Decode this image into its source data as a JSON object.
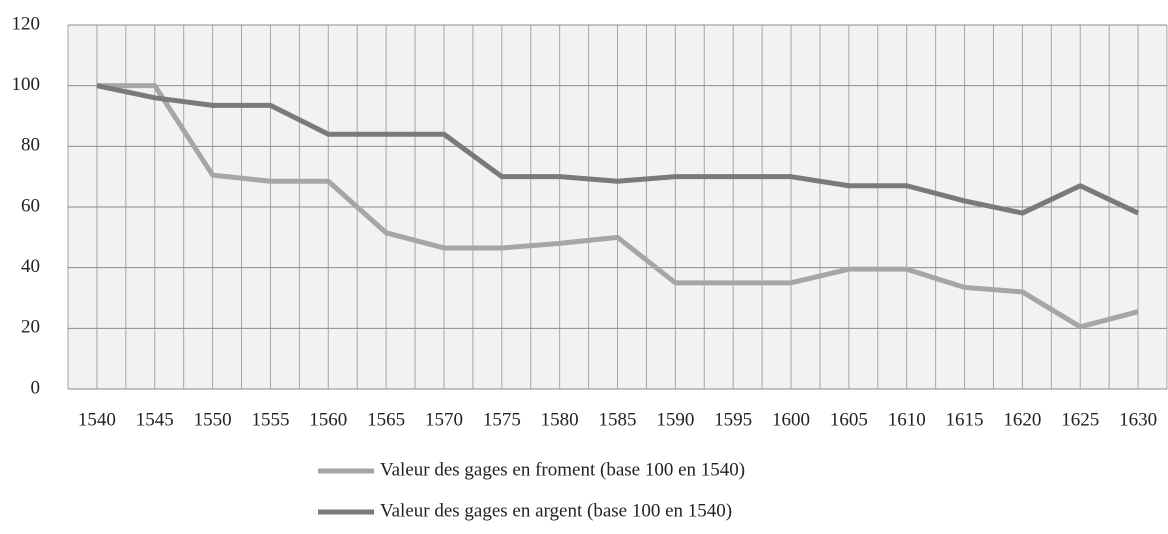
{
  "chart_data": {
    "type": "line",
    "categories": [
      "1540",
      "1545",
      "1550",
      "1555",
      "1560",
      "1565",
      "1570",
      "1575",
      "1580",
      "1585",
      "1590",
      "1595",
      "1600",
      "1605",
      "1610",
      "1615",
      "1620",
      "1625",
      "1630"
    ],
    "series": [
      {
        "name": "Valeur des gages en froment (base 100 en 1540)",
        "color": "#a6a6a6",
        "values": [
          100,
          100,
          70.5,
          68.5,
          68.5,
          51.5,
          46.5,
          46.5,
          48,
          50,
          35,
          35,
          35,
          39.5,
          39.5,
          33.5,
          32,
          20.5,
          25.5
        ]
      },
      {
        "name": "Valeur des gages en argent (base 100 en 1540)",
        "color": "#7a7a7a",
        "values": [
          100,
          96,
          93.5,
          93.5,
          84,
          84,
          84,
          70,
          70,
          68.5,
          70,
          70,
          70,
          67,
          67,
          62,
          58,
          67,
          58
        ]
      }
    ],
    "ylim": [
      0,
      120
    ],
    "yticks": [
      0,
      20,
      40,
      60,
      80,
      100,
      120
    ],
    "grid": true,
    "legend": "bottom"
  }
}
